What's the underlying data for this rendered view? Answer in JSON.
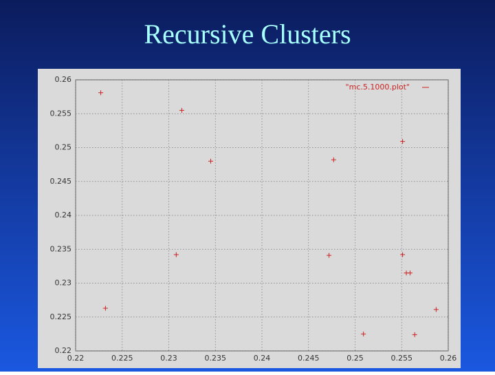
{
  "chart_data": {
    "type": "scatter",
    "title": "Recursive Clusters",
    "series": [
      {
        "name": "\"mc.5.1000.plot\"",
        "color": "#cc2020",
        "x": [
          0.2227,
          0.2314,
          0.2345,
          0.2477,
          0.2551,
          0.2308,
          0.2472,
          0.2551,
          0.2555,
          0.2559,
          0.2232,
          0.2587,
          0.2509,
          0.2564
        ],
        "values": [
          0.2581,
          0.2555,
          0.248,
          0.2482,
          0.2509,
          0.2342,
          0.2341,
          0.2342,
          0.2315,
          0.2315,
          0.2263,
          0.2261,
          0.2225,
          0.2224
        ]
      }
    ],
    "xlim": [
      0.22,
      0.26
    ],
    "xticks": [
      0.22,
      0.225,
      0.23,
      0.235,
      0.24,
      0.245,
      0.25,
      0.255,
      0.26
    ],
    "ylim": [
      0.22,
      0.26
    ],
    "yticks": [
      0.22,
      0.225,
      0.23,
      0.235,
      0.24,
      0.245,
      0.25,
      0.255,
      0.26
    ],
    "grid": true,
    "legend": "top-right"
  }
}
